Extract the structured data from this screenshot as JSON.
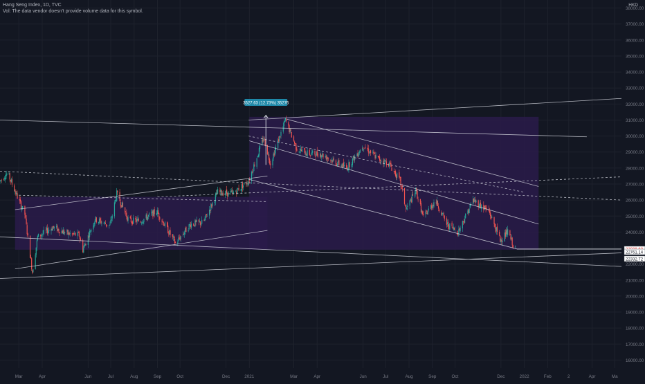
{
  "header": {
    "title": "Hang Seng Index, 1D, TVC",
    "note": "Vol: The data vendor doesn't provide volume data for this symbol."
  },
  "currency": "HKD",
  "colors": {
    "background": "#131722",
    "grid": "#1e222d",
    "up": "#26a69a",
    "down": "#ef5350",
    "channel_fill": "#2a1b4a",
    "lines": "#d1d4dc",
    "label_box": "#1e88a8",
    "price_box": "#ffffff"
  },
  "chart_data": {
    "type": "candlestick",
    "ylim": [
      15500,
      38500
    ],
    "y_ticks": [
      16000,
      17000,
      18000,
      19000,
      20000,
      21000,
      22000,
      23000,
      24000,
      25000,
      26000,
      27000,
      28000,
      29000,
      30000,
      31000,
      32000,
      33000,
      34000,
      35000,
      36000,
      37000,
      38000
    ],
    "y_tick_labels": [
      "16000.00",
      "17000.00",
      "18000.00",
      "19000.00",
      "20000.00",
      "21000.00",
      "22000.00",
      "23000.00",
      "24000.00",
      "25000.00",
      "26000.00",
      "27000.00",
      "28000.00",
      "29000.00",
      "30000.00",
      "31000.00",
      "32000.00",
      "33000.00",
      "34000.00",
      "35000.00",
      "36000.00",
      "37000.00",
      "38000.00"
    ],
    "xlim": [
      "2020-02-05",
      "2022-05-10"
    ],
    "x_ticks": [
      {
        "date": "2020-03-01",
        "label": "Mar"
      },
      {
        "date": "2020-04-01",
        "label": "Apr"
      },
      {
        "date": "2020-06-01",
        "label": "Jun"
      },
      {
        "date": "2020-07-01",
        "label": "Jul"
      },
      {
        "date": "2020-08-01",
        "label": "Aug"
      },
      {
        "date": "2020-09-01",
        "label": "Sep"
      },
      {
        "date": "2020-10-01",
        "label": "Oct"
      },
      {
        "date": "2020-12-01",
        "label": "Dec"
      },
      {
        "date": "2021-01-01",
        "label": "2021"
      },
      {
        "date": "2021-03-01",
        "label": "Mar"
      },
      {
        "date": "2021-04-01",
        "label": "Apr"
      },
      {
        "date": "2021-06-01",
        "label": "Jun"
      },
      {
        "date": "2021-07-01",
        "label": "Jul"
      },
      {
        "date": "2021-08-01",
        "label": "Aug"
      },
      {
        "date": "2021-09-01",
        "label": "Sep"
      },
      {
        "date": "2021-10-01",
        "label": "Oct"
      },
      {
        "date": "2021-12-01",
        "label": "Dec"
      },
      {
        "date": "2022-01-01",
        "label": "2022"
      },
      {
        "date": "2022-02-01",
        "label": "Feb"
      },
      {
        "date": "2022-03-01",
        "label": "2"
      },
      {
        "date": "2022-04-01",
        "label": "Apr"
      },
      {
        "date": "2022-05-01",
        "label": "Ma"
      }
    ],
    "price_path": [
      [
        "2020-02-05",
        27200
      ],
      [
        "2020-02-15",
        27700
      ],
      [
        "2020-02-28",
        26200
      ],
      [
        "2020-03-09",
        25100
      ],
      [
        "2020-03-19",
        21500
      ],
      [
        "2020-03-26",
        23700
      ],
      [
        "2020-04-15",
        24300
      ],
      [
        "2020-05-05",
        23900
      ],
      [
        "2020-05-20",
        23800
      ],
      [
        "2020-05-25",
        22900
      ],
      [
        "2020-06-10",
        24800
      ],
      [
        "2020-06-30",
        24400
      ],
      [
        "2020-07-09",
        26400
      ],
      [
        "2020-07-25",
        24700
      ],
      [
        "2020-08-10",
        24700
      ],
      [
        "2020-08-31",
        25300
      ],
      [
        "2020-09-25",
        23300
      ],
      [
        "2020-10-15",
        24500
      ],
      [
        "2020-11-01",
        24600
      ],
      [
        "2020-11-20",
        26500
      ],
      [
        "2020-12-10",
        26400
      ],
      [
        "2020-12-31",
        27200
      ],
      [
        "2021-01-20",
        29900
      ],
      [
        "2021-01-29",
        28300
      ],
      [
        "2021-02-18",
        31000
      ],
      [
        "2021-03-05",
        29200
      ],
      [
        "2021-03-20",
        28900
      ],
      [
        "2021-04-05",
        28900
      ],
      [
        "2021-05-10",
        28000
      ],
      [
        "2021-06-01",
        29400
      ],
      [
        "2021-06-20",
        28600
      ],
      [
        "2021-07-05",
        28300
      ],
      [
        "2021-07-20",
        27200
      ],
      [
        "2021-07-28",
        25400
      ],
      [
        "2021-08-10",
        26600
      ],
      [
        "2021-08-20",
        24900
      ],
      [
        "2021-09-05",
        26000
      ],
      [
        "2021-09-20",
        24500
      ],
      [
        "2021-10-05",
        24000
      ],
      [
        "2021-10-25",
        26000
      ],
      [
        "2021-11-15",
        25300
      ],
      [
        "2021-11-30",
        23500
      ],
      [
        "2021-12-10",
        24000
      ],
      [
        "2021-12-20",
        22900
      ]
    ],
    "annotations": [
      {
        "text": "3527.63 (12.73%) 35276",
        "x": "2021-01-23",
        "y": 32100
      },
      {
        "text": "22938.60",
        "y": 22938.6,
        "style": "current-price"
      },
      {
        "text": "22761.14",
        "y": 22761.14,
        "style": "level"
      },
      {
        "text": "22332.72",
        "y": 22332.72,
        "style": "level"
      }
    ],
    "drawings": {
      "upper_channel": {
        "from": [
          "2020-02-05",
          31000
        ],
        "to": [
          "2022-03-25",
          29950
        ]
      },
      "upper_rising_line": {
        "from": [
          "2020-12-31",
          31000
        ],
        "to": [
          "2022-05-10",
          32350
        ]
      },
      "fan_top": {
        "from": [
          "2021-02-20",
          31050
        ],
        "to": [
          "2022-01-20",
          26850
        ]
      },
      "fan_mid": {
        "from": [
          "2021-01-01",
          29700
        ],
        "to": [
          "2022-01-20",
          24500
        ]
      },
      "fan_bottom": {
        "from": [
          "2020-12-31",
          27300
        ],
        "to": [
          "2021-12-22",
          22950
        ]
      },
      "upper_left_channel": {
        "from": [
          "2020-02-25",
          25400
        ],
        "to": [
          "2021-01-25",
          27500
        ]
      },
      "lower_left_channel": {
        "from": [
          "2020-02-25",
          21700
        ],
        "to": [
          "2021-01-25",
          24100
        ]
      },
      "mid_dashed_1": {
        "from": [
          "2020-03-01",
          26300
        ],
        "to": [
          "2021-01-25",
          25900
        ]
      },
      "mid_dashed_2": {
        "from": [
          "2020-02-05",
          27800
        ],
        "to": [
          "2022-05-10",
          26000
        ]
      },
      "rising_dashed": {
        "from": [
          "2020-09-01",
          26200
        ],
        "to": [
          "2022-05-10",
          27450
        ]
      },
      "wide_dashed": {
        "from": [
          "2020-12-31",
          30000
        ],
        "to": [
          "2021-12-31",
          26500
        ]
      },
      "lower_diagonal": {
        "from": [
          "2020-02-05",
          23700
        ],
        "to": [
          "2022-05-10",
          21850
        ]
      },
      "bottom_rising": {
        "from": [
          "2020-02-05",
          21100
        ],
        "to": [
          "2022-05-10",
          22700
        ]
      },
      "flat_level": {
        "from": [
          "2021-12-22",
          22938.6
        ],
        "to": [
          "2022-05-10",
          22938.6
        ]
      }
    }
  }
}
